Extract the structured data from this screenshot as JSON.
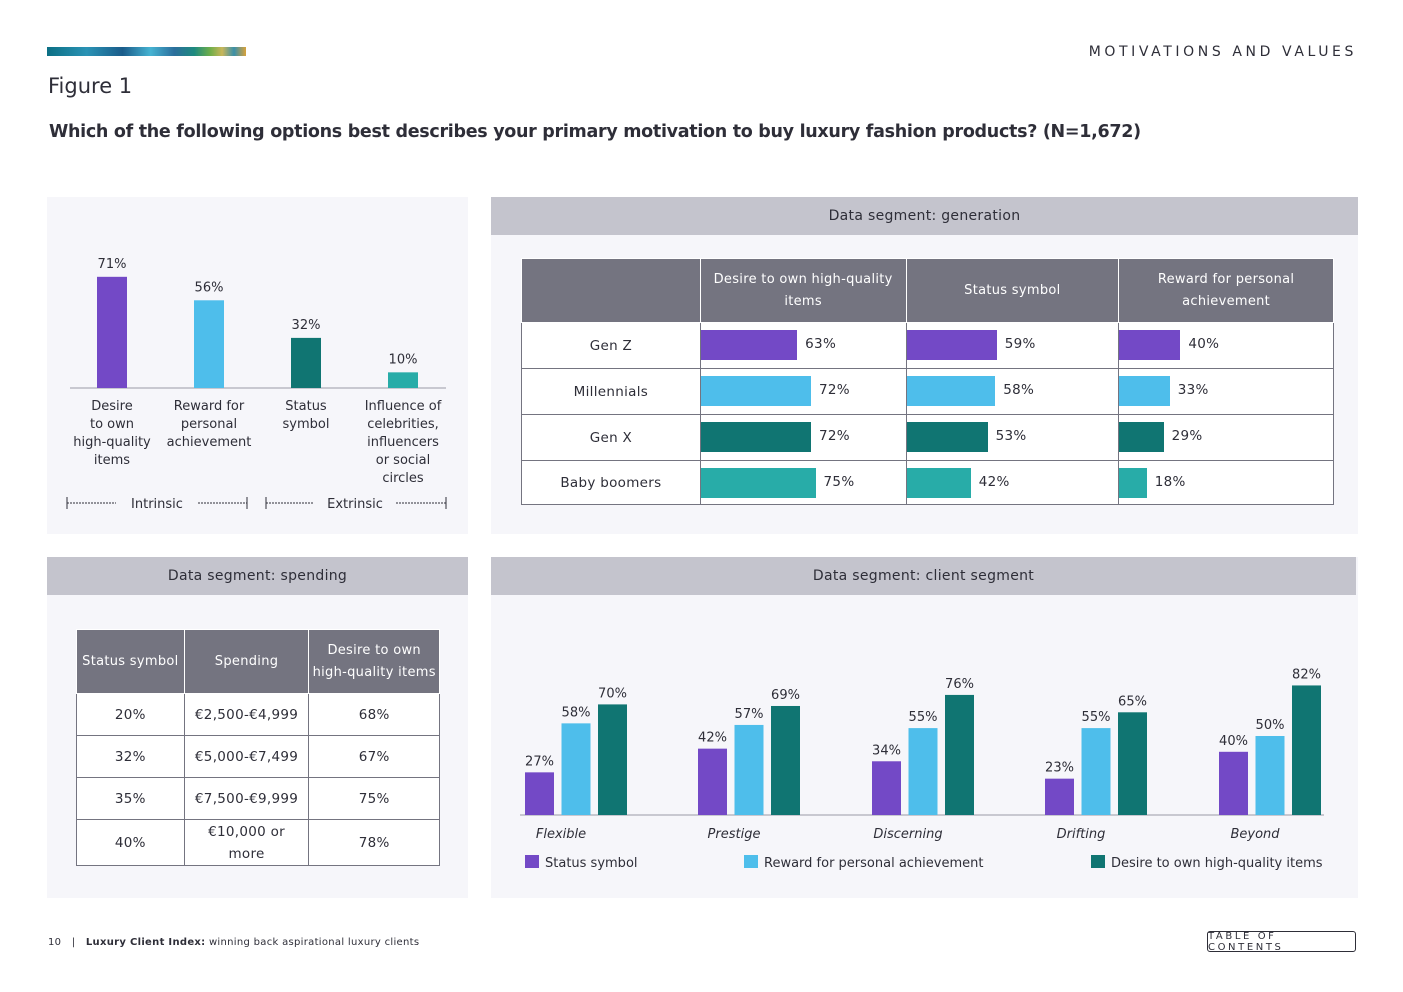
{
  "header": {
    "section_label": "MOTIVATIONS AND VALUES",
    "figure_title": "Figure 1",
    "question": "Which of the following options best describes your primary motivation to buy luxury fashion products? (N=1,672)"
  },
  "colors": {
    "purple": "#7349c6",
    "light_blue": "#4ebeeb",
    "dark_teal": "#107572",
    "teal": "#28aca8",
    "header_gray": "#747480",
    "panel_head_gray": "#c4c4cd"
  },
  "chart_data": [
    {
      "type": "bar",
      "categories": [
        "Desire to own high-quality items",
        "Reward for personal achievement",
        "Status symbol",
        "Influence of celebrities, influencers or social circles"
      ],
      "category_lines": [
        [
          "Desire",
          "to own",
          "high-quality",
          "items"
        ],
        [
          "Reward for",
          "personal",
          "achievement"
        ],
        [
          "Status",
          "symbol"
        ],
        [
          "Influence of",
          "celebrities,",
          "influencers",
          "or social",
          "circles"
        ]
      ],
      "values": [
        71,
        56,
        32,
        10
      ],
      "value_labels": [
        "71%",
        "56%",
        "32%",
        "10%"
      ],
      "bar_colors": [
        "#7349c6",
        "#4ebeeb",
        "#107572",
        "#28aca8"
      ],
      "groups": [
        {
          "label": "Intrinsic",
          "categories": [
            0,
            1
          ]
        },
        {
          "label": "Extrinsic",
          "categories": [
            2,
            3
          ]
        }
      ],
      "ylim": [
        0,
        100
      ]
    },
    {
      "type": "table",
      "title": "Data segment: generation",
      "columns": [
        "",
        "Desire to own high-quality items",
        "Status symbol",
        "Reward for personal achievement"
      ],
      "column_lines": [
        [
          ""
        ],
        [
          "Desire to own high-quality",
          "items"
        ],
        [
          "Status symbol"
        ],
        [
          "Reward for personal",
          "achievement"
        ]
      ],
      "rows": [
        {
          "label": "Gen Z",
          "values": [
            63,
            59,
            40
          ],
          "labels": [
            "63%",
            "59%",
            "40%"
          ],
          "color": "#7349c6"
        },
        {
          "label": "Millennials",
          "values": [
            72,
            58,
            33
          ],
          "labels": [
            "72%",
            "58%",
            "33%"
          ],
          "color": "#4ebeeb"
        },
        {
          "label": "Gen X",
          "values": [
            72,
            53,
            29
          ],
          "labels": [
            "72%",
            "53%",
            "29%"
          ],
          "color": "#107572"
        },
        {
          "label": "Baby boomers",
          "values": [
            75,
            42,
            18
          ],
          "labels": [
            "75%",
            "42%",
            "18%"
          ],
          "color": "#28aca8"
        }
      ]
    },
    {
      "type": "table",
      "title": "Data segment: spending",
      "columns": [
        "Status symbol",
        "Spending",
        "Desire to own high-quality items"
      ],
      "column_lines": [
        [
          "Status symbol"
        ],
        [
          "Spending"
        ],
        [
          "Desire to own",
          "high-quality items"
        ]
      ],
      "rows": [
        {
          "status": "20%",
          "spending": [
            "€2,500-€4,999"
          ],
          "desire": "68%"
        },
        {
          "status": "32%",
          "spending": [
            "€5,000-€7,499"
          ],
          "desire": "67%"
        },
        {
          "status": "35%",
          "spending": [
            "€7,500-€9,999"
          ],
          "desire": "75%"
        },
        {
          "status": "40%",
          "spending": [
            "€10,000 or",
            "more"
          ],
          "desire": "78%"
        }
      ]
    },
    {
      "type": "bar",
      "title": "Data segment: client segment",
      "categories": [
        "Flexible",
        "Prestige",
        "Discerning",
        "Drifting",
        "Beyond"
      ],
      "series": [
        {
          "name": "Status symbol",
          "values": [
            27,
            42,
            34,
            23,
            40
          ],
          "color": "#7349c6"
        },
        {
          "name": "Reward for personal achievement",
          "values": [
            58,
            57,
            55,
            55,
            50
          ],
          "color": "#4ebeeb"
        },
        {
          "name": "Desire to own high-quality items",
          "values": [
            70,
            69,
            76,
            65,
            82
          ],
          "color": "#107572"
        }
      ],
      "ylim": [
        0,
        100
      ],
      "legend": "bottom"
    }
  ],
  "footer": {
    "page_number": "10",
    "separator": "|",
    "publication": "Luxury Client Index:",
    "subtitle": "winning back aspirational luxury clients",
    "toc_label": "TABLE OF CONTENTS"
  }
}
